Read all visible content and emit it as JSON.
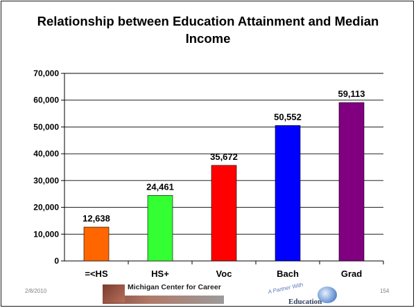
{
  "footer": {
    "date": "2/8/2010",
    "page_number": "154",
    "logo1_text": "Michigan Center for Career",
    "logo2_text": "A Partner With",
    "logo2_word": "Education"
  },
  "chart_data": {
    "type": "bar",
    "title": "Relationship between Education Attainment and Median Income",
    "xlabel": "",
    "ylabel": "",
    "categories": [
      "=<HS",
      "HS+",
      "Voc",
      "Bach",
      "Grad"
    ],
    "values": [
      12638,
      24461,
      35672,
      50552,
      59113
    ],
    "value_labels": [
      "12,638",
      "24,461",
      "35,672",
      "50,552",
      "59,113"
    ],
    "colors": [
      "#ff6600",
      "#33ff33",
      "#ff0000",
      "#0000ff",
      "#800080"
    ],
    "ylim": [
      0,
      70000
    ],
    "yticks": [
      0,
      10000,
      20000,
      30000,
      40000,
      50000,
      60000,
      70000
    ],
    "ytick_labels": [
      "0",
      "10,000",
      "20,000",
      "30,000",
      "40,000",
      "50,000",
      "60,000",
      "70,000"
    ],
    "grid": true,
    "legend": "none"
  }
}
